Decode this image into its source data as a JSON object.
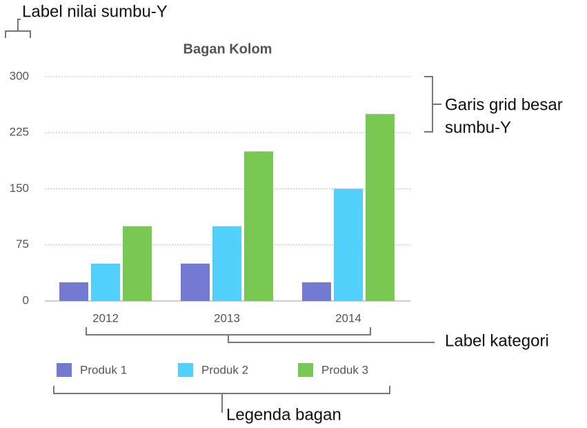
{
  "chart_data": {
    "type": "bar",
    "title": "Bagan Kolom",
    "categories": [
      "2012",
      "2013",
      "2014"
    ],
    "series": [
      {
        "name": "Produk 1",
        "color": "#7479d2",
        "values": [
          25,
          50,
          25
        ]
      },
      {
        "name": "Produk 2",
        "color": "#50d0fb",
        "values": [
          50,
          100,
          150
        ]
      },
      {
        "name": "Produk 3",
        "color": "#79c852",
        "values": [
          100,
          200,
          250
        ]
      }
    ],
    "ylim": [
      0,
      300
    ],
    "yticks": [
      0,
      75,
      150,
      225,
      300
    ],
    "grid": true,
    "annotations": {
      "y_tick_labels": "Label nilai sumbu-Y",
      "gridlines": [
        "Garis grid besar",
        "sumbu-Y"
      ],
      "category_labels": "Label kategori",
      "legend": "Legenda bagan"
    }
  }
}
